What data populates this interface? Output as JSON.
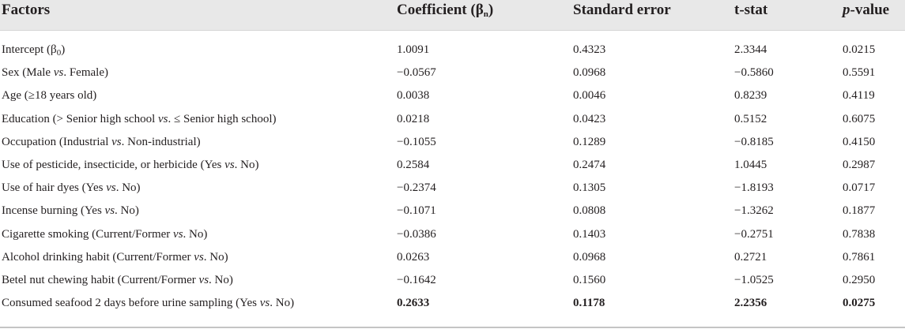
{
  "table": {
    "headers": {
      "factors": "Factors",
      "coefficient_prefix": "Coefficient (β",
      "coefficient_sub": "n",
      "coefficient_suffix": ")",
      "standard_error": "Standard error",
      "t_stat": "t-stat",
      "p_value_italic": "p",
      "p_value_rest": "-value"
    },
    "rows": [
      {
        "f_pre": "Intercept (β",
        "f_sub": "0",
        "f_vs": "",
        "f_post": ")",
        "coef": "1.0091",
        "se": "0.4323",
        "t": "2.3344",
        "p": "0.0215",
        "bold": false
      },
      {
        "f_pre": "Sex (Male ",
        "f_sub": "",
        "f_vs": "vs",
        "f_post": ". Female)",
        "coef": "−0.0567",
        "se": "0.0968",
        "t": "−0.5860",
        "p": "0.5591",
        "bold": false
      },
      {
        "f_pre": "Age (≥18 years old)",
        "f_sub": "",
        "f_vs": "",
        "f_post": "",
        "coef": "0.0038",
        "se": "0.0046",
        "t": "0.8239",
        "p": "0.4119",
        "bold": false
      },
      {
        "f_pre": "Education (> Senior high school ",
        "f_sub": "",
        "f_vs": "vs",
        "f_post": ". ≤ Senior high school)",
        "coef": "0.0218",
        "se": "0.0423",
        "t": "0.5152",
        "p": "0.6075",
        "bold": false
      },
      {
        "f_pre": "Occupation (Industrial ",
        "f_sub": "",
        "f_vs": "vs",
        "f_post": ". Non-industrial)",
        "coef": "−0.1055",
        "se": "0.1289",
        "t": "−0.8185",
        "p": "0.4150",
        "bold": false
      },
      {
        "f_pre": "Use of pesticide, insecticide, or herbicide (Yes ",
        "f_sub": "",
        "f_vs": "vs",
        "f_post": ". No)",
        "coef": "0.2584",
        "se": "0.2474",
        "t": "1.0445",
        "p": "0.2987",
        "bold": false
      },
      {
        "f_pre": "Use of hair dyes (Yes ",
        "f_sub": "",
        "f_vs": "vs",
        "f_post": ". No)",
        "coef": "−0.2374",
        "se": "0.1305",
        "t": "−1.8193",
        "p": "0.0717",
        "bold": false
      },
      {
        "f_pre": "Incense burning (Yes ",
        "f_sub": "",
        "f_vs": "vs",
        "f_post": ". No)",
        "coef": "−0.1071",
        "se": "0.0808",
        "t": "−1.3262",
        "p": "0.1877",
        "bold": false
      },
      {
        "f_pre": "Cigarette smoking (Current/Former ",
        "f_sub": "",
        "f_vs": "vs",
        "f_post": ". No)",
        "coef": "−0.0386",
        "se": "0.1403",
        "t": "−0.2751",
        "p": "0.7838",
        "bold": false
      },
      {
        "f_pre": "Alcohol drinking habit (Current/Former ",
        "f_sub": "",
        "f_vs": "vs",
        "f_post": ". No)",
        "coef": "0.0263",
        "se": "0.0968",
        "t": "0.2721",
        "p": "0.7861",
        "bold": false
      },
      {
        "f_pre": "Betel nut chewing habit (Current/Former ",
        "f_sub": "",
        "f_vs": "vs",
        "f_post": ". No)",
        "coef": "−0.1642",
        "se": "0.1560",
        "t": "−1.0525",
        "p": "0.2950",
        "bold": false
      },
      {
        "f_pre": "Consumed seafood 2 days before urine sampling (Yes ",
        "f_sub": "",
        "f_vs": "vs",
        "f_post": ". No)",
        "coef": "0.2633",
        "se": "0.1178",
        "t": "2.2356",
        "p": "0.0275",
        "bold": true
      }
    ]
  }
}
